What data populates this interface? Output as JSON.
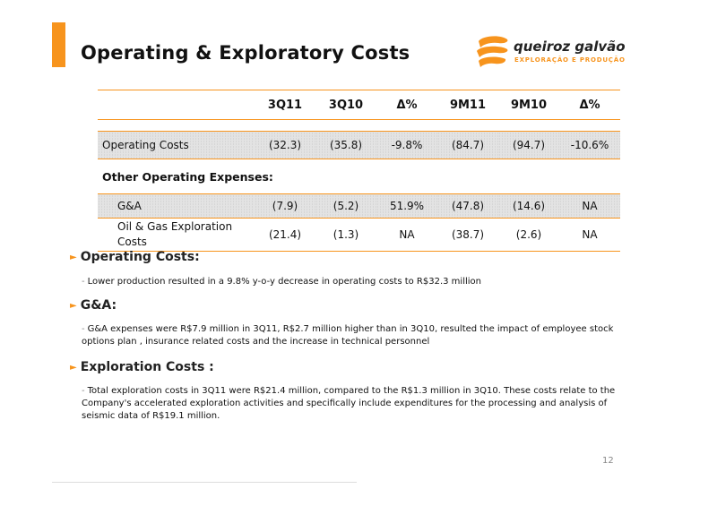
{
  "slide": {
    "title": "Operating & Exploratory Costs",
    "page_number": "12"
  },
  "logo": {
    "name": "queiroz galvão",
    "tagline": "EXPLORAÇÃO E PRODUÇÃO"
  },
  "colors": {
    "accent": "#f7941d"
  },
  "table": {
    "headers": [
      "",
      "3Q11",
      "3Q10",
      "Δ%",
      "9M11",
      "9M10",
      "Δ%"
    ],
    "operating_costs": {
      "label": "Operating Costs",
      "values": [
        "(32.3)",
        "(35.8)",
        "-9.8%",
        "(84.7)",
        "(94.7)",
        "-10.6%"
      ]
    },
    "other_heading": "Other Operating Expenses:",
    "ga": {
      "label": "G&A",
      "values": [
        "(7.9)",
        "(5.2)",
        "51.9%",
        "(47.8)",
        "(14.6)",
        "NA"
      ]
    },
    "oil_gas": {
      "label": "Oil & Gas Exploration Costs",
      "values": [
        "(21.4)",
        "(1.3)",
        "NA",
        "(38.7)",
        "(2.6)",
        "NA"
      ]
    }
  },
  "sections": [
    {
      "heading": "Operating Costs:",
      "text": "Lower production resulted in a 9.8% y-o-y decrease in operating costs to R$32.3 million"
    },
    {
      "heading": "G&A:",
      "text": "G&A expenses were R$7.9 million in 3Q11, R$2.7 million higher than in 3Q10, resulted the impact of employee stock options plan , insurance related costs and the increase in technical personnel"
    },
    {
      "heading": "Exploration Costs :",
      "text": "Total exploration costs in 3Q11 were R$21.4 million, compared to the R$1.3 million in 3Q10. These costs relate to the Company's accelerated exploration activities and specifically include expenditures for the processing and analysis of seismic data of R$19.1 million."
    }
  ]
}
